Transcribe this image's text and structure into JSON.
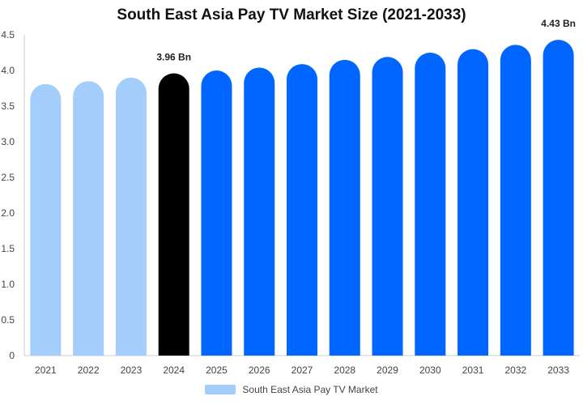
{
  "chart_data": {
    "type": "bar",
    "title": "South East Asia Pay TV Market Size (2021-2033)",
    "xlabel": "",
    "ylabel": "",
    "categories": [
      "2021",
      "2022",
      "2023",
      "2024",
      "2025",
      "2026",
      "2027",
      "2028",
      "2029",
      "2030",
      "2031",
      "2032",
      "2033"
    ],
    "series": [
      {
        "name": "South East Asia Pay TV Market",
        "values": [
          3.81,
          3.85,
          3.9,
          3.96,
          4.0,
          4.04,
          4.09,
          4.15,
          4.19,
          4.25,
          4.3,
          4.36,
          4.43
        ]
      }
    ],
    "ylim": [
      0,
      4.5
    ],
    "yticks": [
      "0",
      "0.5",
      "1.0",
      "1.5",
      "2.0",
      "2.5",
      "3.0",
      "3.5",
      "4.0",
      "4.5"
    ],
    "data_labels": [
      {
        "category": "2024",
        "text": "3.96 Bn"
      },
      {
        "category": "2033",
        "text": "4.43 Bn"
      }
    ],
    "grid": false,
    "legend_position": "bottom",
    "colors": {
      "historical": "#a3cdfb",
      "current": "#000000",
      "forecast": "#0066ff",
      "legend": "#a3cdfb"
    },
    "bar_color_groups": [
      "historical",
      "historical",
      "historical",
      "current",
      "forecast",
      "forecast",
      "forecast",
      "forecast",
      "forecast",
      "forecast",
      "forecast",
      "forecast",
      "forecast"
    ]
  }
}
